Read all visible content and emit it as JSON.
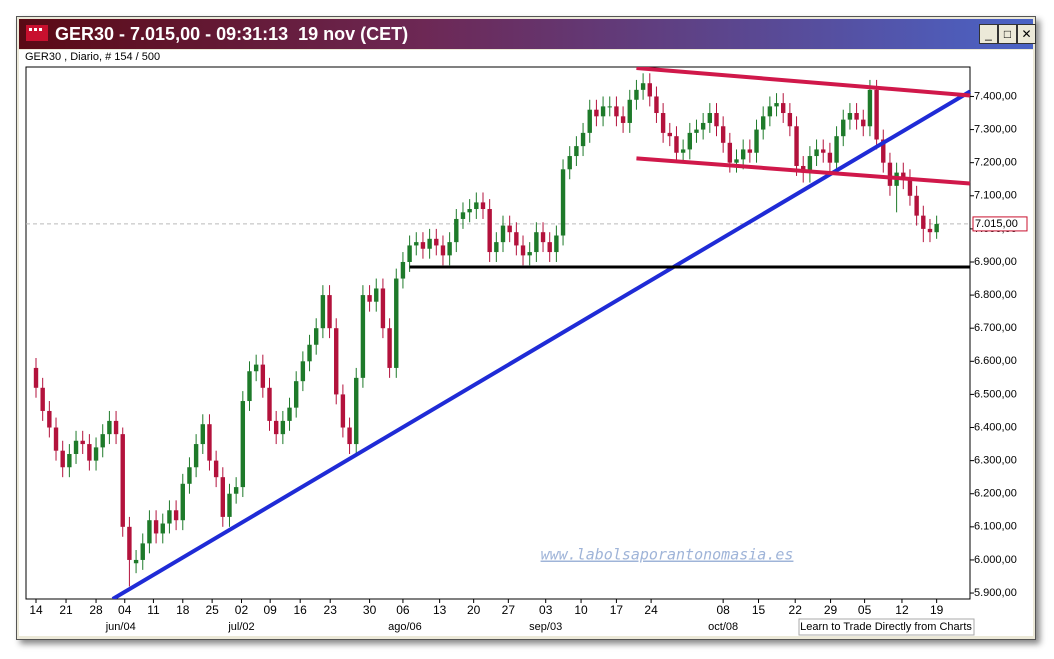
{
  "window_title": "GER30 - 7.015,00 - 09:31:13  19 nov (CET)",
  "chart_data": {
    "type": "candlestick",
    "subtitle": "GER30 , Diario, # 154 / 500",
    "watermark": "www.labolsaporantonomasia.es",
    "footer": "Learn to Trade Directly from Charts",
    "up_color": "#1e7a2a",
    "down_color": "#b3123c",
    "open": [
      6580,
      6520,
      6450,
      6400,
      6330,
      6280,
      6320,
      6360,
      6350,
      6300,
      6340,
      6380,
      6420,
      6380,
      6100,
      5990,
      6000,
      6050,
      6120,
      6080,
      6110,
      6150,
      6120,
      6230,
      6280,
      6350,
      6410,
      6300,
      6250,
      6130,
      6200,
      6220,
      6480,
      6570,
      6590,
      6520,
      6420,
      6380,
      6420,
      6460,
      6540,
      6600,
      6650,
      6700,
      6800,
      6700,
      6500,
      6400,
      6350,
      6550,
      6800,
      6780,
      6820,
      6700,
      6580,
      6850,
      6900,
      6950,
      6960,
      6940,
      6970,
      6950,
      6920,
      6960,
      7030,
      7050,
      7060,
      7080,
      7060,
      6930,
      6960,
      7010,
      6990,
      6950,
      6920,
      6930,
      6990,
      6960,
      6930,
      6980,
      7180,
      7220,
      7250,
      7290,
      7360,
      7340,
      7370,
      7370,
      7340,
      7320,
      7390,
      7420,
      7440,
      7400,
      7350,
      7290,
      7280,
      7230,
      7240,
      7290,
      7300,
      7320,
      7350,
      7310,
      7260,
      7200,
      7210,
      7240,
      7230,
      7300,
      7340,
      7370,
      7380,
      7350,
      7310,
      7190,
      7170,
      7220,
      7240,
      7230,
      7200,
      7280,
      7330,
      7350,
      7330,
      7310,
      7420,
      7270,
      7200,
      7130,
      7170,
      7150,
      7100,
      7040,
      7000,
      6990
    ],
    "high": [
      6610,
      6550,
      6480,
      6430,
      6360,
      6350,
      6390,
      6390,
      6380,
      6370,
      6410,
      6450,
      6450,
      6400,
      6130,
      6030,
      6080,
      6150,
      6150,
      6140,
      6180,
      6180,
      6260,
      6310,
      6380,
      6440,
      6440,
      6330,
      6280,
      6230,
      6250,
      6510,
      6600,
      6620,
      6620,
      6550,
      6450,
      6450,
      6490,
      6570,
      6630,
      6680,
      6730,
      6830,
      6830,
      6730,
      6530,
      6430,
      6580,
      6830,
      6830,
      6850,
      6850,
      6730,
      6880,
      6930,
      6980,
      6990,
      6990,
      7000,
      7000,
      6980,
      6990,
      7060,
      7080,
      7090,
      7110,
      7110,
      7090,
      6990,
      7040,
      7040,
      7020,
      6980,
      6960,
      7020,
      7020,
      6990,
      7010,
      7210,
      7250,
      7280,
      7320,
      7390,
      7390,
      7400,
      7400,
      7400,
      7370,
      7420,
      7450,
      7470,
      7470,
      7430,
      7380,
      7320,
      7310,
      7270,
      7320,
      7330,
      7350,
      7380,
      7380,
      7340,
      7290,
      7240,
      7270,
      7270,
      7330,
      7370,
      7400,
      7410,
      7410,
      7380,
      7340,
      7220,
      7250,
      7270,
      7270,
      7260,
      7310,
      7360,
      7380,
      7380,
      7360,
      7450,
      7450,
      7300,
      7230,
      7200,
      7200,
      7180,
      7130,
      7070,
      7030,
      7040
    ],
    "low": [
      6490,
      6420,
      6370,
      6300,
      6250,
      6250,
      6290,
      6320,
      6270,
      6270,
      6310,
      6350,
      6350,
      6070,
      5920,
      5960,
      5970,
      6020,
      6050,
      6050,
      6080,
      6090,
      6090,
      6200,
      6250,
      6320,
      6270,
      6220,
      6100,
      6100,
      6170,
      6190,
      6450,
      6540,
      6490,
      6390,
      6350,
      6350,
      6390,
      6430,
      6510,
      6570,
      6620,
      6670,
      6670,
      6470,
      6370,
      6320,
      6320,
      6520,
      6750,
      6750,
      6670,
      6550,
      6550,
      6820,
      6870,
      6920,
      6910,
      6910,
      6920,
      6890,
      6890,
      6930,
      7000,
      7020,
      7030,
      7030,
      6900,
      6900,
      6930,
      6960,
      6920,
      6890,
      6890,
      6900,
      6930,
      6900,
      6900,
      6950,
      7150,
      7190,
      7220,
      7260,
      7310,
      7310,
      7340,
      7310,
      7290,
      7290,
      7360,
      7390,
      7370,
      7320,
      7260,
      7250,
      7200,
      7200,
      7210,
      7260,
      7270,
      7290,
      7280,
      7230,
      7170,
      7170,
      7180,
      7200,
      7200,
      7270,
      7310,
      7340,
      7320,
      7280,
      7160,
      7140,
      7140,
      7190,
      7200,
      7170,
      7170,
      7250,
      7300,
      7300,
      7280,
      7280,
      7240,
      7170,
      7100,
      7050,
      7120,
      7070,
      7010,
      6960,
      6960,
      6970
    ],
    "close": [
      6520,
      6450,
      6400,
      6330,
      6280,
      6320,
      6360,
      6350,
      6300,
      6340,
      6380,
      6420,
      6380,
      6100,
      6000,
      6000,
      6050,
      6120,
      6080,
      6110,
      6150,
      6120,
      6230,
      6280,
      6350,
      6410,
      6300,
      6250,
      6130,
      6200,
      6220,
      6480,
      6570,
      6590,
      6520,
      6420,
      6380,
      6420,
      6460,
      6540,
      6600,
      6650,
      6700,
      6800,
      6700,
      6500,
      6400,
      6350,
      6550,
      6800,
      6780,
      6820,
      6700,
      6580,
      6850,
      6900,
      6950,
      6960,
      6940,
      6970,
      6950,
      6920,
      6960,
      7030,
      7050,
      7060,
      7080,
      7060,
      6930,
      6960,
      7010,
      6990,
      6950,
      6920,
      6930,
      6990,
      6960,
      6930,
      6980,
      7180,
      7220,
      7250,
      7290,
      7360,
      7340,
      7370,
      7370,
      7340,
      7320,
      7390,
      7420,
      7440,
      7400,
      7350,
      7290,
      7280,
      7230,
      7240,
      7290,
      7300,
      7320,
      7350,
      7310,
      7260,
      7200,
      7210,
      7240,
      7230,
      7300,
      7340,
      7370,
      7380,
      7350,
      7310,
      7190,
      7170,
      7220,
      7240,
      7230,
      7200,
      7280,
      7330,
      7350,
      7330,
      7310,
      7420,
      7270,
      7200,
      7130,
      7170,
      7150,
      7100,
      7040,
      7000,
      6990,
      7015
    ],
    "xlim": [
      -1.5,
      140
    ],
    "ylim": [
      5882,
      7489
    ],
    "yticks": [
      {
        "value": 5900,
        "label": "5.900,00"
      },
      {
        "value": 6000,
        "label": "6.000,00"
      },
      {
        "value": 6100,
        "label": "6.100,00"
      },
      {
        "value": 6200,
        "label": "6.200,00"
      },
      {
        "value": 6300,
        "label": "6.300,00"
      },
      {
        "value": 6400,
        "label": "6.400,00"
      },
      {
        "value": 6500,
        "label": "6.500,00"
      },
      {
        "value": 6600,
        "label": "6.600,00"
      },
      {
        "value": 6700,
        "label": "6.700,00"
      },
      {
        "value": 6800,
        "label": "6.800,00"
      },
      {
        "value": 6900,
        "label": "6.900,00"
      },
      {
        "value": 7000,
        "label": "7.000,00"
      },
      {
        "value": 7100,
        "label": "7.100,00"
      },
      {
        "value": 7200,
        "label": "7.200,00"
      },
      {
        "value": 7300,
        "label": "7.300,00"
      },
      {
        "value": 7400,
        "label": "7.400,00"
      }
    ],
    "xticks": [
      {
        "value": 0,
        "label": "14"
      },
      {
        "value": 4.5,
        "label": "21"
      },
      {
        "value": 9,
        "label": "28"
      },
      {
        "value": 13.3,
        "label": "04"
      },
      {
        "value": 17.6,
        "label": "11"
      },
      {
        "value": 22,
        "label": "18"
      },
      {
        "value": 26.4,
        "label": "25"
      },
      {
        "value": 30.8,
        "label": "02"
      },
      {
        "value": 35.1,
        "label": "09"
      },
      {
        "value": 39.6,
        "label": "16"
      },
      {
        "value": 44.1,
        "label": "23"
      },
      {
        "value": 50,
        "label": "30"
      },
      {
        "value": 55,
        "label": "06"
      },
      {
        "value": 60.5,
        "label": "13"
      },
      {
        "value": 65.6,
        "label": "20"
      },
      {
        "value": 70.8,
        "label": "27"
      },
      {
        "value": 76.4,
        "label": "03"
      },
      {
        "value": 81.7,
        "label": "10"
      },
      {
        "value": 87,
        "label": "17"
      },
      {
        "value": 92.2,
        "label": "24"
      },
      {
        "value": 103,
        "label": "08"
      },
      {
        "value": 108.3,
        "label": "15"
      },
      {
        "value": 113.8,
        "label": "22"
      },
      {
        "value": 119.1,
        "label": "29"
      },
      {
        "value": 124.2,
        "label": "05"
      },
      {
        "value": 129.8,
        "label": "12"
      },
      {
        "value": 135,
        "label": "19"
      }
    ],
    "month_labels": [
      {
        "value": 12.7,
        "label": "jun/04"
      },
      {
        "value": 30.8,
        "label": "jul/02"
      },
      {
        "value": 55.3,
        "label": "ago/06"
      },
      {
        "value": 76.4,
        "label": "sep/03"
      },
      {
        "value": 103,
        "label": "oct/08"
      }
    ],
    "last_price": {
      "value": 7015,
      "label": "7.015,00"
    },
    "lines": [
      {
        "color": "#1f2bd6",
        "x": [
          11.5,
          140
        ],
        "values": [
          5882,
          7415
        ]
      },
      {
        "color": "#d0184a",
        "x": [
          90,
          140
        ],
        "values": [
          7486,
          7403
        ]
      },
      {
        "color": "#d0184a",
        "x": [
          90,
          140
        ],
        "values": [
          7213,
          7137
        ]
      },
      {
        "color": "#000000",
        "x": [
          56,
          140
        ],
        "values": [
          6885,
          6885
        ]
      }
    ]
  }
}
